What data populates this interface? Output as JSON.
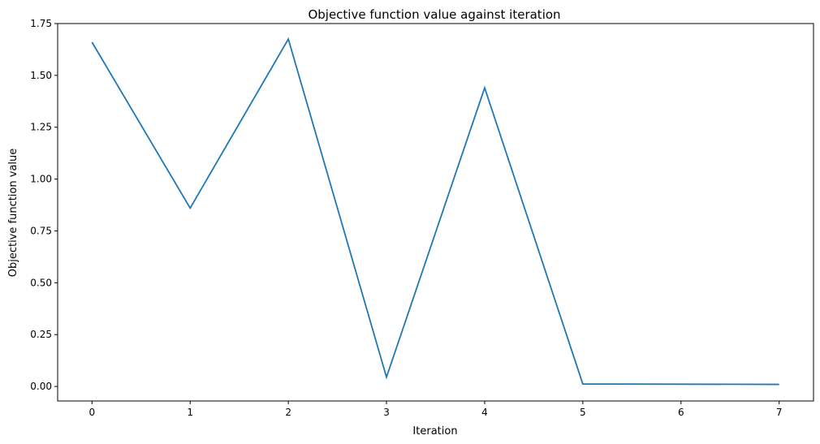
{
  "chart_data": {
    "type": "line",
    "title": "Objective function value against iteration",
    "xlabel": "Iteration",
    "ylabel": "Objective function value",
    "x": [
      0,
      1,
      2,
      3,
      4,
      5,
      6,
      7
    ],
    "series": [
      {
        "values": [
          1.66,
          0.86,
          1.675,
          0.045,
          1.44,
          0.012,
          0.011,
          0.01
        ],
        "color": "#1f77b4"
      }
    ],
    "xlim": [
      -0.35,
      7.35
    ],
    "ylim": [
      -0.07,
      1.75
    ],
    "xticks": [
      0,
      1,
      2,
      3,
      4,
      5,
      6,
      7
    ],
    "xtick_labels": [
      "0",
      "1",
      "2",
      "3",
      "4",
      "5",
      "6",
      "7"
    ],
    "yticks": [
      0,
      0.25,
      0.5,
      0.75,
      1.0,
      1.25,
      1.5,
      1.75
    ],
    "ytick_labels": [
      "0.00",
      "0.25",
      "0.50",
      "0.75",
      "1.00",
      "1.25",
      "1.50",
      "1.75"
    ],
    "grid": false,
    "legend": "none"
  }
}
